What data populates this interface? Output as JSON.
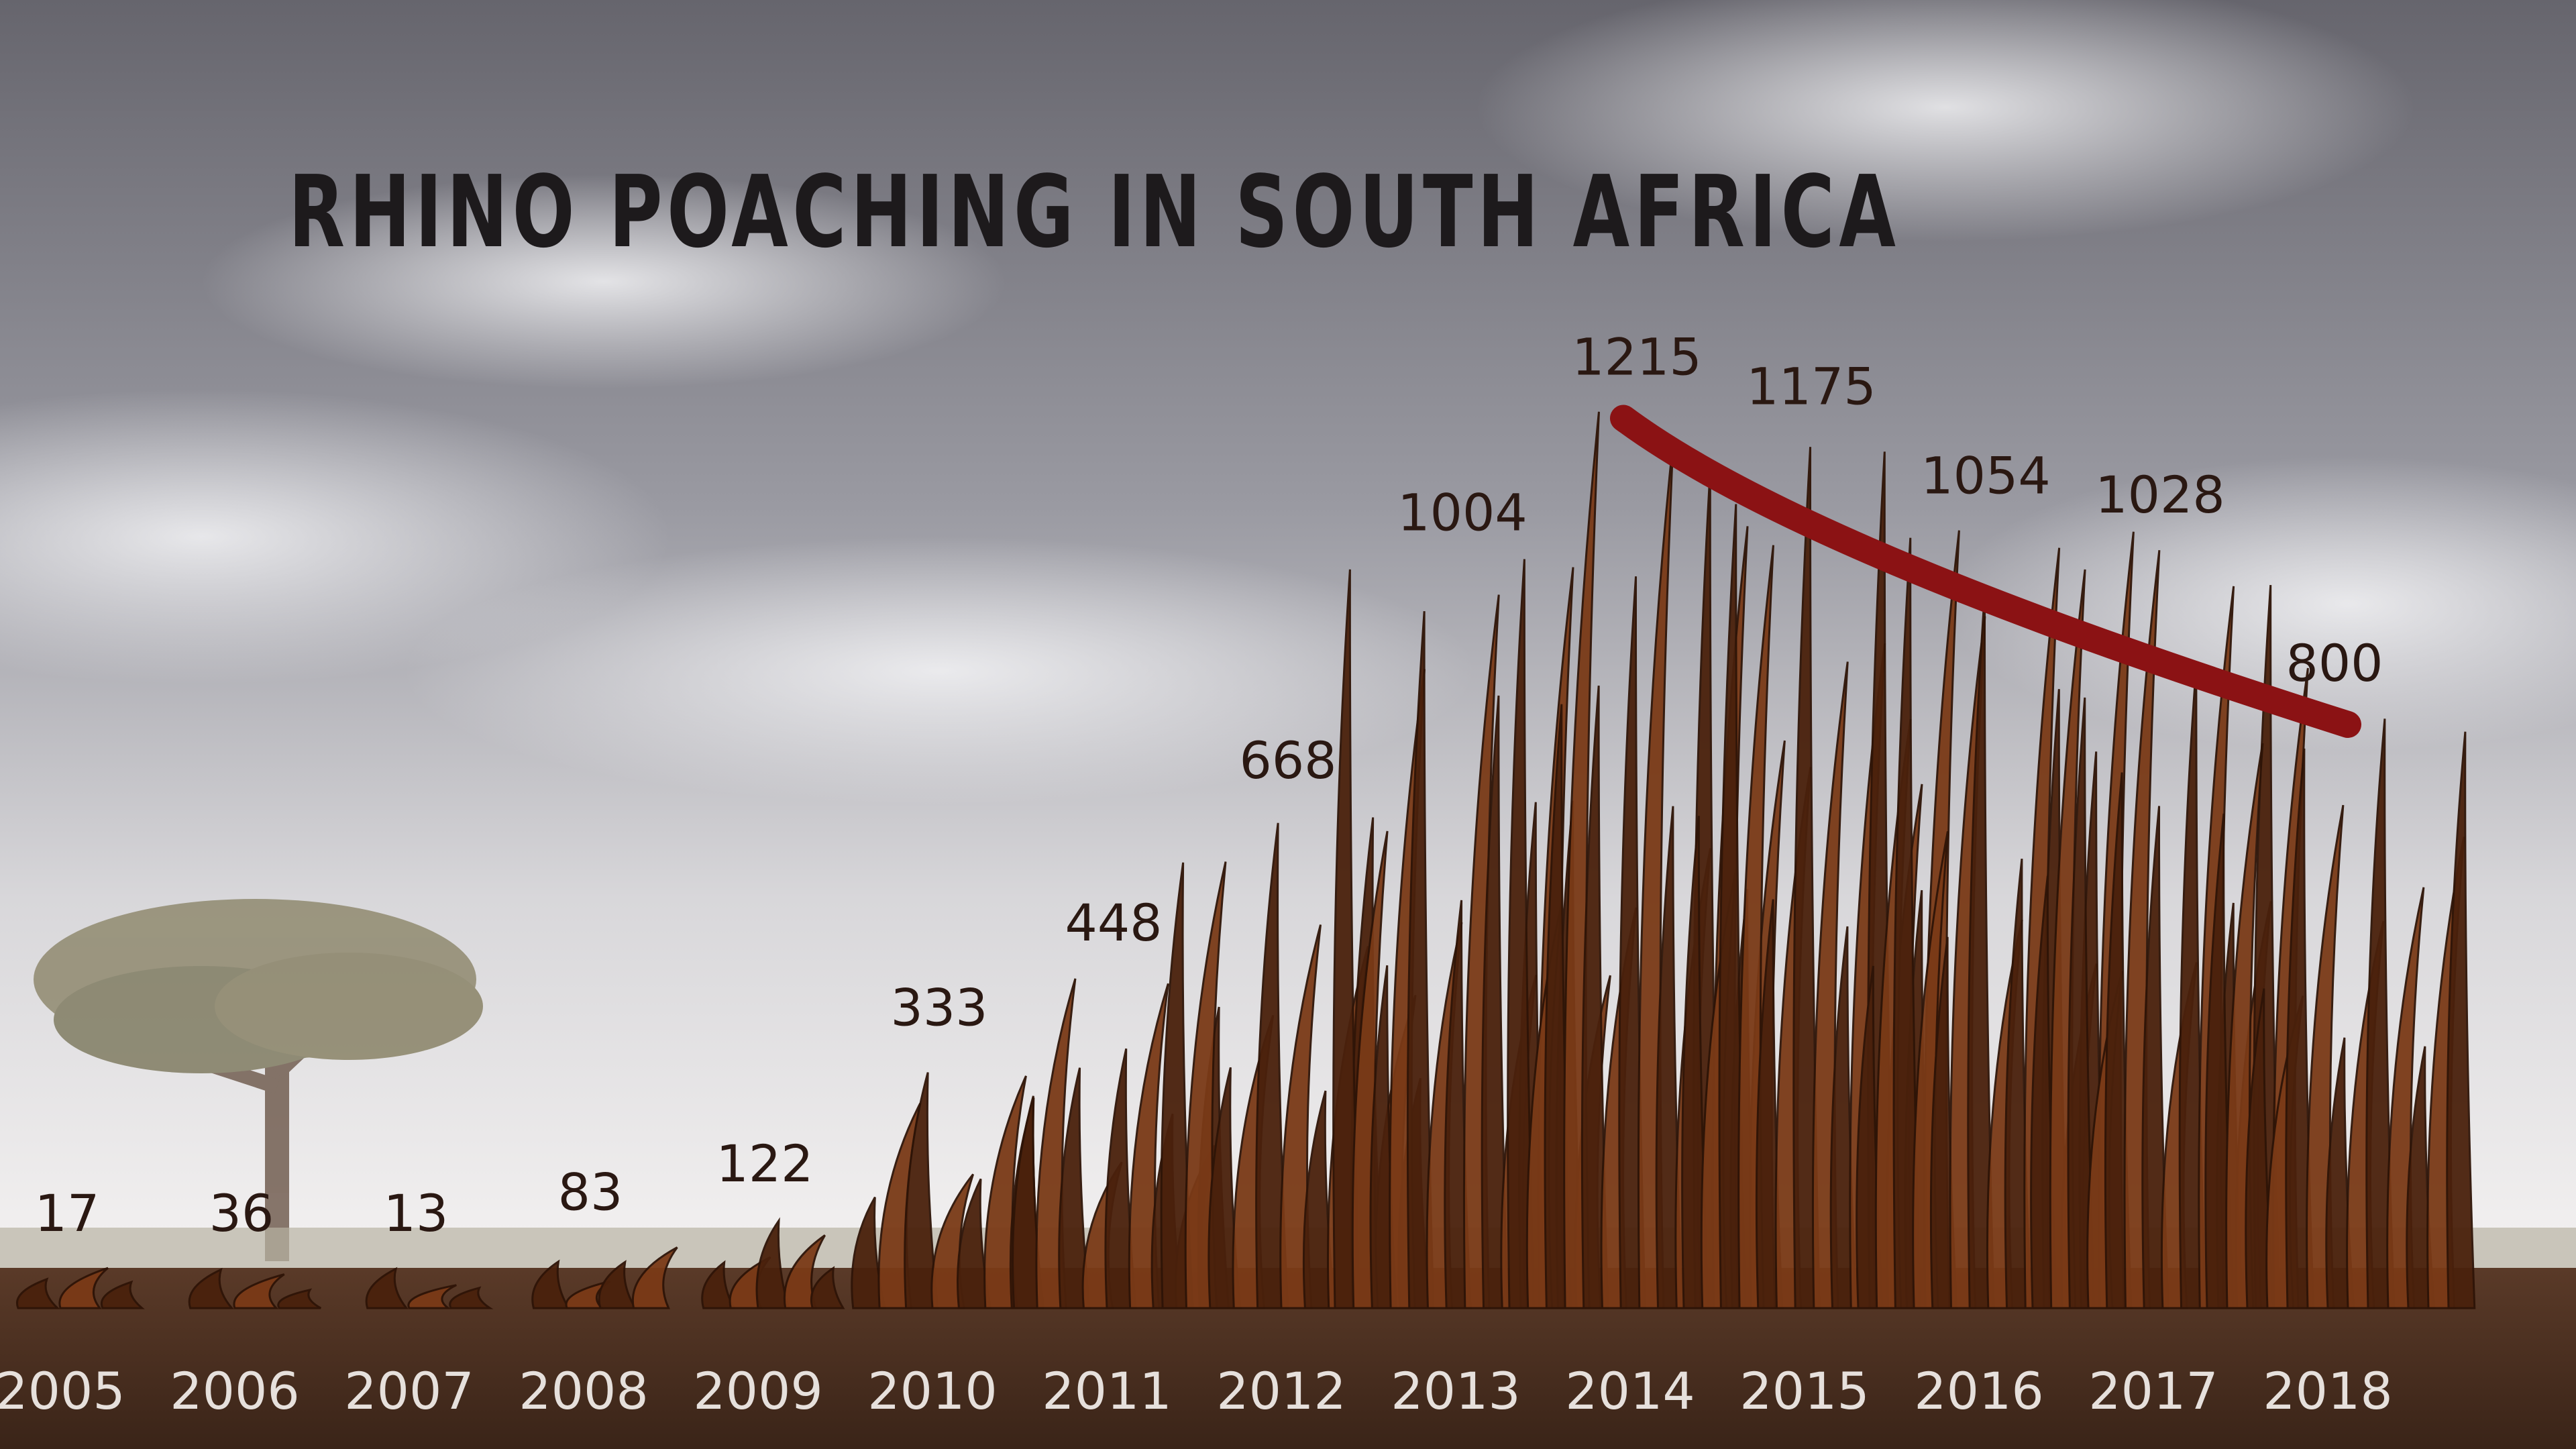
{
  "title": "RHINO POACHING IN SOUTH AFRICA",
  "colors": {
    "horn": "#7a3a17",
    "horn_dark": "#4a210c",
    "trend": "#8b1214",
    "ground": "#4b2e20",
    "sky_top": "#6f6e76",
    "sky_bottom": "#e9e7e8"
  },
  "chart_data": {
    "type": "bar",
    "title": "RHINO POACHING IN SOUTH AFRICA",
    "categories": [
      "2005",
      "2006",
      "2007",
      "2008",
      "2009",
      "2010",
      "2011",
      "2012",
      "2013",
      "2014",
      "2015",
      "2016",
      "2017",
      "2018"
    ],
    "values": [
      17,
      36,
      13,
      83,
      122,
      333,
      448,
      668,
      1004,
      1215,
      1175,
      1054,
      1028,
      800
    ],
    "trend_line": {
      "from": "2014",
      "to": "2018",
      "direction": "decreasing"
    },
    "ylim": [
      0,
      1300
    ],
    "grid": false,
    "legend": "none"
  }
}
